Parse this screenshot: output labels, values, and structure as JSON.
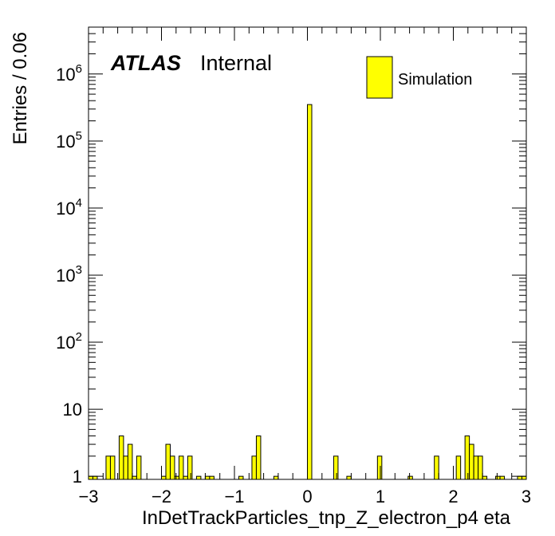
{
  "chart_data": {
    "type": "bar",
    "xlabel": "InDetTrackParticles_tnp_Z_electron_p4 eta",
    "ylabel": "Entries / 0.06",
    "xlim": [
      -3,
      3
    ],
    "ylim": [
      0.9,
      5000000
    ],
    "yscale": "log",
    "bin_width": 0.06,
    "bar_color": "#ffff00",
    "edge_color": "#000000",
    "x_ticks": [
      "−3",
      "−2",
      "−1",
      "0",
      "1",
      "2",
      "3"
    ],
    "y_ticks": [
      {
        "base": "1",
        "exp": ""
      },
      {
        "base": "10",
        "exp": ""
      },
      {
        "base": "10",
        "exp": "2"
      },
      {
        "base": "10",
        "exp": "3"
      },
      {
        "base": "10",
        "exp": "4"
      },
      {
        "base": "10",
        "exp": "5"
      },
      {
        "base": "10",
        "exp": "6"
      }
    ],
    "atlas_label": "ATLAS",
    "internal_label": "Internal",
    "legend": {
      "position": "top-right",
      "entries": [
        "Simulation"
      ]
    },
    "bins": [
      {
        "x": -3.0,
        "y": 1
      },
      {
        "x": -2.94,
        "y": 1
      },
      {
        "x": -2.76,
        "y": 2
      },
      {
        "x": -2.7,
        "y": 2
      },
      {
        "x": -2.58,
        "y": 4
      },
      {
        "x": -2.52,
        "y": 2
      },
      {
        "x": -2.46,
        "y": 3
      },
      {
        "x": -2.4,
        "y": 1
      },
      {
        "x": -2.34,
        "y": 2
      },
      {
        "x": -2.0,
        "y": 1
      },
      {
        "x": -1.94,
        "y": 3
      },
      {
        "x": -1.88,
        "y": 2
      },
      {
        "x": -1.82,
        "y": 1
      },
      {
        "x": -1.76,
        "y": 2
      },
      {
        "x": -1.7,
        "y": 1
      },
      {
        "x": -1.64,
        "y": 2
      },
      {
        "x": -1.52,
        "y": 1
      },
      {
        "x": -1.4,
        "y": 1
      },
      {
        "x": -1.34,
        "y": 1
      },
      {
        "x": -0.94,
        "y": 1
      },
      {
        "x": -0.76,
        "y": 2
      },
      {
        "x": -0.7,
        "y": 4
      },
      {
        "x": -0.46,
        "y": 1
      },
      {
        "x": 0.0,
        "y": 350000
      },
      {
        "x": 0.36,
        "y": 2
      },
      {
        "x": 0.54,
        "y": 1
      },
      {
        "x": 0.96,
        "y": 2
      },
      {
        "x": 1.38,
        "y": 1
      },
      {
        "x": 1.74,
        "y": 2
      },
      {
        "x": 2.04,
        "y": 2
      },
      {
        "x": 2.16,
        "y": 4
      },
      {
        "x": 2.22,
        "y": 3
      },
      {
        "x": 2.28,
        "y": 2
      },
      {
        "x": 2.34,
        "y": 2
      },
      {
        "x": 2.4,
        "y": 1
      },
      {
        "x": 2.58,
        "y": 1
      },
      {
        "x": 2.64,
        "y": 1
      },
      {
        "x": 2.88,
        "y": 1
      },
      {
        "x": 2.94,
        "y": 1
      }
    ]
  }
}
